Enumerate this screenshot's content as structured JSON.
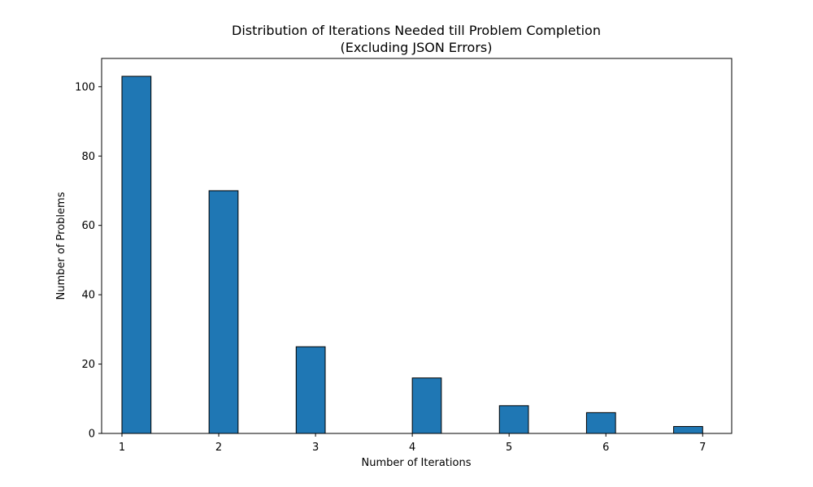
{
  "chart_data": {
    "type": "bar",
    "title": "Distribution of Iterations Needed till Problem Completion",
    "subtitle": "(Excluding JSON Errors)",
    "xlabel": "Number of Iterations",
    "ylabel": "Number of Problems",
    "x_ticks": [
      1,
      2,
      3,
      4,
      5,
      6,
      7
    ],
    "y_ticks": [
      0,
      20,
      40,
      60,
      80,
      100
    ],
    "xlim": [
      0.79,
      7.3
    ],
    "ylim": [
      0,
      108.15
    ],
    "bins": [
      {
        "start": 1.0,
        "end": 1.3,
        "value": 103
      },
      {
        "start": 1.9,
        "end": 2.2,
        "value": 70
      },
      {
        "start": 2.8,
        "end": 3.1,
        "value": 25
      },
      {
        "start": 4.0,
        "end": 4.3,
        "value": 16
      },
      {
        "start": 4.9,
        "end": 5.2,
        "value": 8
      },
      {
        "start": 5.8,
        "end": 6.1,
        "value": 6
      },
      {
        "start": 6.7,
        "end": 7.0,
        "value": 2
      }
    ],
    "bar_color": "#1f77b4",
    "edge_color": "#000000",
    "grid": false,
    "legend": "none"
  }
}
